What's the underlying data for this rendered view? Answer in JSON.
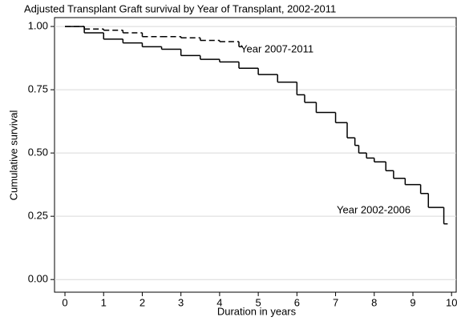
{
  "chart_data": {
    "type": "step",
    "title": "Adjusted Transplant Graft survival by Year of Transplant, 2002-2011",
    "x_label": "Duration in years",
    "y_label": "Cumulative survival",
    "xlim": [
      -0.27,
      10.12
    ],
    "ylim": [
      -0.05,
      1.035
    ],
    "xticks": [
      0,
      1,
      2,
      3,
      4,
      5,
      6,
      7,
      8,
      9,
      10
    ],
    "yticks": [
      {
        "value": 0,
        "label": "0.00"
      },
      {
        "value": 0.25,
        "label": "0.25"
      },
      {
        "value": 0.5,
        "label": "0.50"
      },
      {
        "value": 0.75,
        "label": "0.75"
      },
      {
        "value": 1,
        "label": "1.00"
      }
    ],
    "grid": true,
    "series": [
      {
        "name": "Year 2002-2006",
        "color": "#000000",
        "dash": false,
        "x": [
          0,
          0.5,
          1,
          1.5,
          2,
          2.5,
          3,
          3.5,
          4,
          4.5,
          5,
          5.5,
          6,
          6.2,
          6.5,
          7,
          7.3,
          7.5,
          7.6,
          7.8,
          8,
          8.3,
          8.5,
          8.8,
          9.2,
          9.4,
          9.8,
          9.9
        ],
        "values": [
          1,
          0.975,
          0.95,
          0.935,
          0.92,
          0.91,
          0.885,
          0.87,
          0.86,
          0.835,
          0.81,
          0.78,
          0.73,
          0.7,
          0.66,
          0.62,
          0.56,
          0.53,
          0.5,
          0.48,
          0.465,
          0.43,
          0.4,
          0.375,
          0.34,
          0.285,
          0.22,
          0.22
        ]
      },
      {
        "name": "Year 2007-2011",
        "color": "#000000",
        "dash": true,
        "x": [
          0,
          0.5,
          1,
          1.5,
          2,
          2.5,
          3,
          3.5,
          4,
          4.5,
          4.6
        ],
        "values": [
          1,
          0.99,
          0.985,
          0.975,
          0.96,
          0.96,
          0.955,
          0.945,
          0.94,
          0.92,
          0.92
        ]
      }
    ]
  }
}
